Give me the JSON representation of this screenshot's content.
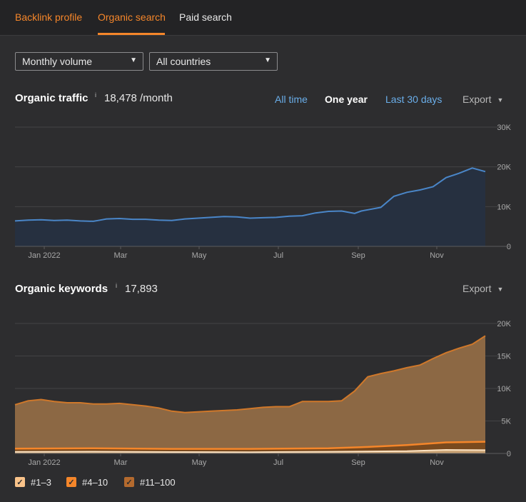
{
  "tabs": [
    {
      "label": "Backlink profile"
    },
    {
      "label": "Organic search"
    },
    {
      "label": "Paid search"
    }
  ],
  "filters": {
    "volume": "Monthly volume",
    "country": "All countries"
  },
  "traffic": {
    "title": "Organic traffic",
    "info": "i",
    "value": "18,478 /month",
    "ranges": [
      "All time",
      "One year",
      "Last 30 days"
    ],
    "active_range": "One year",
    "export": "Export"
  },
  "keywords": {
    "title": "Organic keywords",
    "info": "i",
    "value": "17,893",
    "export": "Export"
  },
  "legend": [
    {
      "label": "#1–3",
      "color": "#f9c38a"
    },
    {
      "label": "#4–10",
      "color": "#f5862a"
    },
    {
      "label": "#11–100",
      "color": "#b46a2e"
    }
  ],
  "colors": {
    "accent": "#f5862a",
    "traffic_line": "#4a86c8",
    "traffic_fill": "#263040",
    "kw_fill": "#8c6844",
    "kw_line": "#d0782a"
  },
  "chart_data": [
    {
      "type": "area",
      "title": "Organic traffic",
      "x_ticks": [
        "Jan 2022",
        "Mar",
        "May",
        "Jul",
        "Sep",
        "Nov"
      ],
      "y_ticks": [
        "30K",
        "20K",
        "10K",
        "0"
      ],
      "ylim": [
        0,
        30000
      ],
      "x_range": [
        0,
        360
      ],
      "grid": true,
      "series": [
        {
          "x": [
            0,
            10,
            20,
            30,
            40,
            50,
            60,
            65,
            70,
            80,
            90,
            100,
            110,
            120,
            130,
            140,
            150,
            160,
            170,
            180,
            190,
            200,
            210,
            220,
            230,
            240,
            250,
            260,
            265,
            270,
            280,
            290,
            300,
            310,
            320,
            330,
            340,
            350,
            360
          ],
          "y": [
            6400,
            6600,
            6700,
            6500,
            6600,
            6400,
            6300,
            6600,
            6900,
            7000,
            6800,
            6800,
            6600,
            6500,
            6900,
            7100,
            7300,
            7500,
            7400,
            7100,
            7200,
            7300,
            7600,
            7700,
            8400,
            8800,
            8900,
            8300,
            8900,
            9200,
            9800,
            12600,
            13600,
            14200,
            15000,
            17300,
            18400,
            19700,
            18800
          ]
        }
      ]
    },
    {
      "type": "area",
      "title": "Organic keywords",
      "x_ticks": [
        "Jan 2022",
        "Mar",
        "May",
        "Jul",
        "Sep",
        "Nov"
      ],
      "y_ticks": [
        "20K",
        "15K",
        "10K",
        "5K",
        "0"
      ],
      "ylim": [
        0,
        20000
      ],
      "x_range": [
        0,
        360
      ],
      "grid": true,
      "legend": "bottom-left",
      "series": [
        {
          "name": "#11–100",
          "x": [
            0,
            10,
            20,
            30,
            40,
            50,
            60,
            70,
            80,
            90,
            100,
            110,
            120,
            130,
            140,
            150,
            160,
            170,
            180,
            190,
            200,
            210,
            220,
            230,
            240,
            250,
            260,
            270,
            280,
            290,
            300,
            310,
            320,
            330,
            340,
            350,
            360
          ],
          "y": [
            7500,
            8100,
            8300,
            8000,
            7800,
            7800,
            7600,
            7600,
            7700,
            7500,
            7300,
            7000,
            6500,
            6300,
            6400,
            6500,
            6600,
            6700,
            6900,
            7100,
            7200,
            7200,
            8000,
            8000,
            8000,
            8100,
            9600,
            11800,
            12300,
            12700,
            13200,
            13600,
            14600,
            15500,
            16200,
            16800,
            18100
          ]
        },
        {
          "name": "#4–10",
          "x": [
            0,
            60,
            120,
            180,
            240,
            270,
            300,
            330,
            360
          ],
          "y": [
            750,
            800,
            700,
            700,
            800,
            1000,
            1300,
            1700,
            1800
          ]
        },
        {
          "name": "#1–3",
          "x": [
            0,
            60,
            120,
            180,
            240,
            300,
            330,
            360
          ],
          "y": [
            250,
            280,
            220,
            200,
            260,
            350,
            550,
            500
          ]
        }
      ]
    }
  ]
}
